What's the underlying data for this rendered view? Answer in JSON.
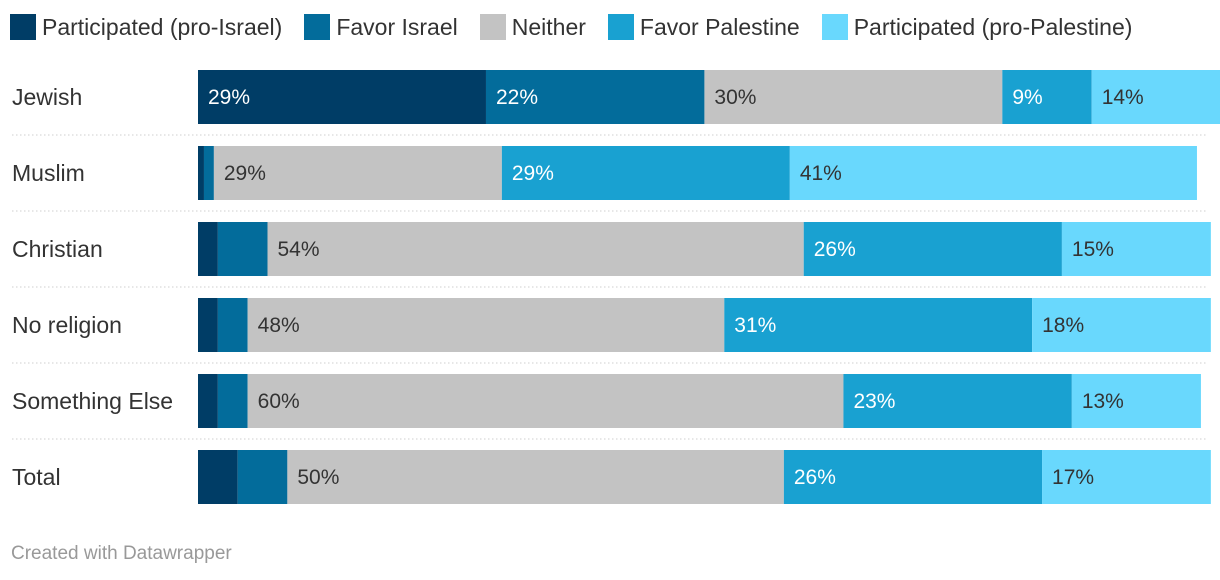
{
  "chart_data": {
    "type": "bar",
    "orientation": "horizontal-stacked",
    "series": [
      {
        "name": "Participated (pro-Israel)",
        "color": "#003D66",
        "label_color": "#ffffff"
      },
      {
        "name": "Favor Israel",
        "color": "#036C9B",
        "label_color": "#ffffff"
      },
      {
        "name": "Neither",
        "color": "#C3C3C3",
        "label_color": "#333333"
      },
      {
        "name": "Favor Palestine",
        "color": "#19A1D1",
        "label_color": "#ffffff"
      },
      {
        "name": "Participated (pro-Palestine)",
        "color": "#69D8FD",
        "label_color": "#333333"
      }
    ],
    "categories": [
      "Jewish",
      "Muslim",
      "Christian",
      "No religion",
      "Something Else",
      "Total"
    ],
    "values": [
      [
        29,
        22,
        30,
        9,
        14
      ],
      [
        0.6,
        1,
        29,
        29,
        41
      ],
      [
        2,
        5,
        54,
        26,
        15
      ],
      [
        2,
        3,
        48,
        31,
        18
      ],
      [
        2,
        3,
        60,
        23,
        13
      ],
      [
        4,
        5,
        50,
        26,
        17
      ]
    ],
    "labels": [
      [
        "29%",
        "22%",
        "30%",
        "9%",
        "14%"
      ],
      [
        "",
        "",
        "29%",
        "29%",
        "41%"
      ],
      [
        "",
        "",
        "54%",
        "26%",
        "15%"
      ],
      [
        "",
        "",
        "48%",
        "31%",
        "18%"
      ],
      [
        "",
        "",
        "60%",
        "23%",
        "13%"
      ],
      [
        "",
        "",
        "50%",
        "26%",
        "17%"
      ]
    ],
    "xlim": [
      0,
      100
    ],
    "legend_position": "top"
  },
  "footer": "Created with Datawrapper"
}
